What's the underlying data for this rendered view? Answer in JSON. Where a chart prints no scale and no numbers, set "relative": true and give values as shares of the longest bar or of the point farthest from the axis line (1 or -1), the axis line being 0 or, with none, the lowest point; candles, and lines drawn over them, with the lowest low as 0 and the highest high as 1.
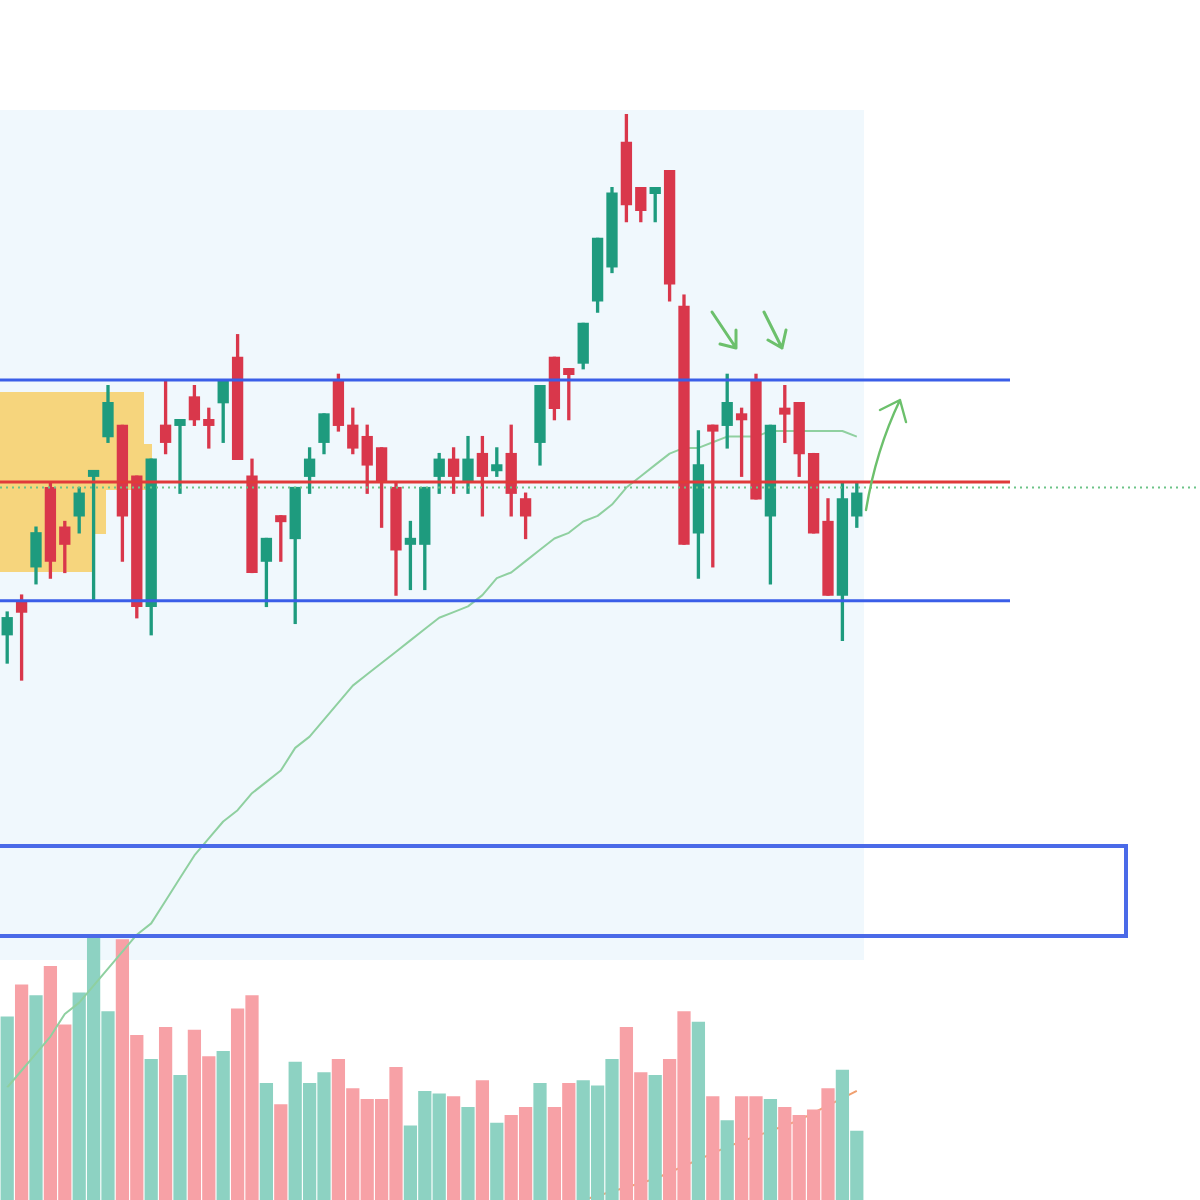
{
  "chart_data": [
    {
      "type": "candlestick",
      "relative": true,
      "categories": [
        null,
        null,
        null,
        null,
        null,
        null,
        null,
        null,
        null,
        null,
        null,
        null,
        null,
        null,
        null,
        null,
        null,
        null,
        null,
        null,
        null,
        null,
        null,
        null,
        null,
        null,
        null,
        null,
        null,
        null,
        null,
        null,
        null,
        null,
        null,
        null,
        null,
        null,
        null,
        null,
        null,
        null,
        null,
        null,
        null,
        null,
        null,
        null,
        null,
        null,
        null,
        null,
        null,
        null,
        null,
        null,
        null,
        null,
        null,
        null
      ],
      "ohlc": [
        [
          0.08,
          0.12,
          0.03,
          0.11
        ],
        [
          0.14,
          0.15,
          0,
          0.12
        ],
        [
          0.2,
          0.27,
          0.17,
          0.26
        ],
        [
          0.34,
          0.35,
          0.18,
          0.21
        ],
        [
          0.27,
          0.28,
          0.19,
          0.24
        ],
        [
          0.29,
          0.34,
          0.26,
          0.33
        ],
        [
          0.36,
          0.37,
          0.14,
          0.37
        ],
        [
          0.43,
          0.52,
          0.42,
          0.49
        ],
        [
          0.45,
          0.45,
          0.21,
          0.29
        ],
        [
          0.36,
          0.36,
          0.11,
          0.13
        ],
        [
          0.13,
          0.39,
          0.08,
          0.39
        ],
        [
          0.45,
          0.53,
          0.4,
          0.42
        ],
        [
          0.45,
          0.46,
          0.33,
          0.46
        ],
        [
          0.5,
          0.52,
          0.45,
          0.46
        ],
        [
          0.46,
          0.48,
          0.41,
          0.45
        ],
        [
          0.49,
          0.53,
          0.42,
          0.53
        ],
        [
          0.57,
          0.61,
          0.39,
          0.39
        ],
        [
          0.36,
          0.39,
          0.19,
          0.19
        ],
        [
          0.21,
          0.25,
          0.13,
          0.25
        ],
        [
          0.29,
          0.29,
          0.21,
          0.28
        ],
        [
          0.25,
          0.34,
          0.1,
          0.34
        ],
        [
          0.36,
          0.41,
          0.33,
          0.39
        ],
        [
          0.42,
          0.47,
          0.4,
          0.47
        ],
        [
          0.53,
          0.54,
          0.44,
          0.45
        ],
        [
          0.45,
          0.48,
          0.4,
          0.41
        ],
        [
          0.43,
          0.45,
          0.33,
          0.38
        ],
        [
          0.41,
          0.41,
          0.27,
          0.35
        ],
        [
          0.34,
          0.35,
          0.15,
          0.23
        ],
        [
          0.24,
          0.28,
          0.16,
          0.25
        ],
        [
          0.24,
          0.34,
          0.16,
          0.34
        ],
        [
          0.36,
          0.4,
          0.33,
          0.39
        ],
        [
          0.39,
          0.41,
          0.33,
          0.36
        ],
        [
          0.35,
          0.43,
          0.33,
          0.39
        ],
        [
          0.4,
          0.43,
          0.29,
          0.36
        ],
        [
          0.37,
          0.41,
          0.36,
          0.38
        ],
        [
          0.4,
          0.45,
          0.29,
          0.33
        ],
        [
          0.32,
          0.33,
          0.25,
          0.29
        ],
        [
          0.42,
          0.52,
          0.38,
          0.52
        ],
        [
          0.57,
          0.57,
          0.46,
          0.48
        ],
        [
          0.55,
          0.55,
          0.46,
          0.54
        ],
        [
          0.56,
          0.63,
          0.55,
          0.63
        ],
        [
          0.67,
          0.78,
          0.65,
          0.78
        ],
        [
          0.73,
          0.87,
          0.72,
          0.86
        ],
        [
          0.95,
          1,
          0.81,
          0.84
        ],
        [
          0.87,
          0.87,
          0.81,
          0.83
        ],
        [
          0.86,
          0.87,
          0.81,
          0.87
        ],
        [
          0.9,
          0.9,
          0.67,
          0.7
        ],
        [
          0.66,
          0.68,
          0.24,
          0.24
        ],
        [
          0.26,
          0.44,
          0.18,
          0.38
        ],
        [
          0.45,
          0.45,
          0.2,
          0.44
        ],
        [
          0.45,
          0.54,
          0.41,
          0.49
        ],
        [
          0.47,
          0.48,
          0.36,
          0.46
        ],
        [
          0.53,
          0.54,
          0.32,
          0.32
        ],
        [
          0.29,
          0.45,
          0.17,
          0.45
        ],
        [
          0.48,
          0.52,
          0.42,
          0.47
        ],
        [
          0.49,
          0.49,
          0.36,
          0.4
        ],
        [
          0.4,
          0.4,
          0.26,
          0.26
        ],
        [
          0.28,
          0.32,
          0.15,
          0.15
        ],
        [
          0.15,
          0.35,
          0.07,
          0.32
        ],
        [
          0.29,
          0.35,
          0.27,
          0.33
        ]
      ],
      "colors": [
        "#1e9b7e",
        "#d9374b",
        "#1e9b7e",
        "#d9374b",
        "#d9374b",
        "#1e9b7e",
        "#1e9b7e",
        "#1e9b7e",
        "#d9374b",
        "#d9374b",
        "#1e9b7e",
        "#d9374b",
        "#1e9b7e",
        "#d9374b",
        "#d9374b",
        "#1e9b7e",
        "#d9374b",
        "#d9374b",
        "#1e9b7e",
        "#d9374b",
        "#1e9b7e",
        "#1e9b7e",
        "#1e9b7e",
        "#d9374b",
        "#d9374b",
        "#d9374b",
        "#d9374b",
        "#d9374b",
        "#1e9b7e",
        "#1e9b7e",
        "#1e9b7e",
        "#d9374b",
        "#1e9b7e",
        "#d9374b",
        "#1e9b7e",
        "#d9374b",
        "#d9374b",
        "#1e9b7e",
        "#d9374b",
        "#d9374b",
        "#1e9b7e",
        "#1e9b7e",
        "#1e9b7e",
        "#d9374b",
        "#d9374b",
        "#1e9b7e",
        "#d9374b",
        "#d9374b",
        "#1e9b7e",
        "#d9374b",
        "#1e9b7e",
        "#d9374b",
        "#d9374b",
        "#1e9b7e",
        "#d9374b",
        "#d9374b",
        "#d9374b",
        "#d9374b",
        "#1e9b7e",
        "#1e9b7e"
      ],
      "series": [
        {
          "type": "line",
          "color": "#8fd0a0",
          "values": [
            -0.72,
            -0.69,
            -0.66,
            -0.63,
            -0.59,
            -0.57,
            -0.54,
            -0.51,
            -0.48,
            -0.45,
            -0.43,
            -0.39,
            -0.35,
            -0.31,
            -0.28,
            -0.25,
            -0.23,
            -0.2,
            -0.18,
            -0.16,
            -0.12,
            -0.1,
            -0.07,
            -0.04,
            -0.01,
            0.01,
            0.03,
            0.05,
            0.07,
            0.09,
            0.11,
            0.12,
            0.13,
            0.15,
            0.18,
            0.19,
            0.21,
            0.23,
            0.25,
            0.26,
            0.28,
            0.29,
            0.31,
            0.34,
            0.36,
            0.38,
            0.4,
            0.41,
            0.41,
            0.42,
            0.43,
            0.43,
            0.43,
            0.44,
            0.44,
            0.44,
            0.44,
            0.44,
            0.44,
            0.43
          ]
        }
      ],
      "ref_lines": [
        {
          "axis": "y",
          "value": 0.53,
          "color": "#3a5ee8",
          "line_style": "solid"
        },
        {
          "axis": "y",
          "value": 0.14,
          "color": "#3a5ee8",
          "line_style": "solid"
        },
        {
          "axis": "y",
          "value": 0.35,
          "color": "#e03a3a",
          "line_style": "solid"
        },
        {
          "axis": "y",
          "value": 0.34,
          "color": "#6cc488",
          "line_style": "dotted"
        }
      ]
    },
    {
      "type": "bar",
      "relative": true,
      "categories": [
        null,
        null,
        null,
        null,
        null,
        null,
        null,
        null,
        null,
        null,
        null,
        null,
        null,
        null,
        null,
        null,
        null,
        null,
        null,
        null,
        null,
        null,
        null,
        null,
        null,
        null,
        null,
        null,
        null,
        null,
        null,
        null,
        null,
        null,
        null,
        null,
        null,
        null,
        null,
        null,
        null,
        null,
        null,
        null,
        null,
        null,
        null,
        null,
        null,
        null,
        null,
        null,
        null,
        null,
        null,
        null,
        null,
        null,
        null,
        null
      ],
      "series": [
        {
          "type": "bar",
          "values": [
            0.69,
            0.81,
            0.77,
            0.88,
            0.66,
            0.78,
            1,
            0.71,
            0.98,
            0.62,
            0.53,
            0.65,
            0.47,
            0.64,
            0.54,
            0.56,
            0.72,
            0.77,
            0.44,
            0.36,
            0.52,
            0.44,
            0.48,
            0.53,
            0.42,
            0.38,
            0.38,
            0.5,
            0.28,
            0.41,
            0.4,
            0.39,
            0.35,
            0.45,
            0.29,
            0.32,
            0.35,
            0.44,
            0.35,
            0.44,
            0.45,
            0.43,
            0.53,
            0.65,
            0.48,
            0.47,
            0.53,
            0.71,
            0.67,
            0.39,
            0.3,
            0.39,
            0.39,
            0.38,
            0.35,
            0.32,
            0.34,
            0.42,
            0.49,
            0.26
          ],
          "colors": [
            "#8dd2c2",
            "#f7a1a6",
            "#8dd2c2",
            "#f7a1a6",
            "#f7a1a6",
            "#8dd2c2",
            "#8dd2c2",
            "#8dd2c2",
            "#f7a1a6",
            "#f7a1a6",
            "#8dd2c2",
            "#f7a1a6",
            "#8dd2c2",
            "#f7a1a6",
            "#f7a1a6",
            "#8dd2c2",
            "#f7a1a6",
            "#f7a1a6",
            "#8dd2c2",
            "#f7a1a6",
            "#8dd2c2",
            "#8dd2c2",
            "#8dd2c2",
            "#f7a1a6",
            "#f7a1a6",
            "#f7a1a6",
            "#f7a1a6",
            "#f7a1a6",
            "#8dd2c2",
            "#8dd2c2",
            "#8dd2c2",
            "#f7a1a6",
            "#8dd2c2",
            "#f7a1a6",
            "#8dd2c2",
            "#f7a1a6",
            "#f7a1a6",
            "#8dd2c2",
            "#f7a1a6",
            "#f7a1a6",
            "#8dd2c2",
            "#8dd2c2",
            "#8dd2c2",
            "#f7a1a6",
            "#f7a1a6",
            "#8dd2c2",
            "#f7a1a6",
            "#f7a1a6",
            "#8dd2c2",
            "#f7a1a6",
            "#8dd2c2",
            "#f7a1a6",
            "#f7a1a6",
            "#8dd2c2",
            "#f7a1a6",
            "#f7a1a6",
            "#f7a1a6",
            "#f7a1a6",
            "#8dd2c2",
            "#8dd2c2"
          ]
        },
        {
          "type": "line",
          "color": "#f0a070",
          "values": [
            null,
            null,
            null,
            null,
            null,
            null,
            null,
            null,
            null,
            null,
            null,
            null,
            null,
            null,
            null,
            null,
            null,
            null,
            null,
            null,
            null,
            null,
            null,
            null,
            null,
            null,
            null,
            null,
            null,
            null,
            null,
            null,
            null,
            null,
            null,
            null,
            null,
            null,
            null,
            null,
            0.0,
            null,
            null,
            null,
            null,
            0.08,
            null,
            null,
            null,
            null,
            0.2,
            null,
            null,
            null,
            null,
            0.3,
            null,
            null,
            null,
            0.41
          ]
        }
      ]
    }
  ]
}
